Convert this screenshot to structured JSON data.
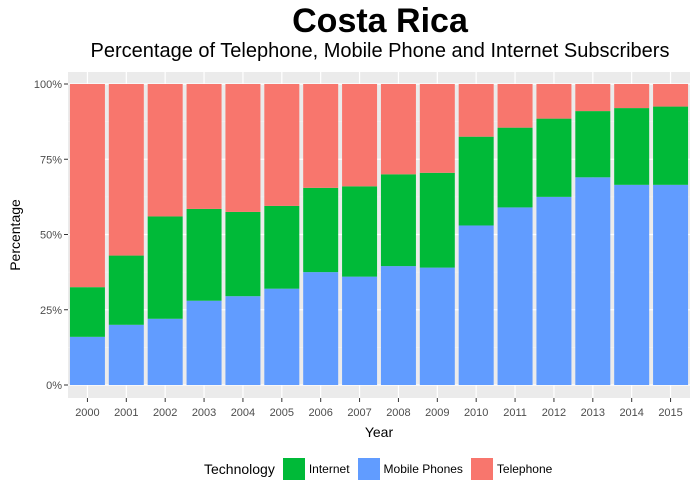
{
  "chart_data": {
    "type": "bar",
    "stacked": true,
    "title": "Costa Rica",
    "subtitle": "Percentage of Telephone, Mobile Phone and Internet Subscribers",
    "xlabel": "Year",
    "ylabel": "Percentage",
    "ylim": [
      0,
      100
    ],
    "y_ticks": [
      "0%",
      "25%",
      "50%",
      "75%",
      "100%"
    ],
    "categories": [
      "2000",
      "2001",
      "2002",
      "2003",
      "2004",
      "2005",
      "2006",
      "2007",
      "2008",
      "2009",
      "2010",
      "2011",
      "2012",
      "2013",
      "2014",
      "2015"
    ],
    "series": [
      {
        "name": "Mobile Phones",
        "color": "#619CFF",
        "values": [
          16,
          20,
          22,
          28,
          29.5,
          32,
          37.5,
          36,
          39.5,
          39,
          53,
          59,
          62.5,
          69,
          66.5,
          66.5
        ]
      },
      {
        "name": "Internet",
        "color": "#00BA38",
        "values": [
          16.5,
          23,
          34,
          30.5,
          28,
          27.5,
          28,
          30,
          30.5,
          31.5,
          29.5,
          26.5,
          26,
          22,
          25.5,
          26
        ]
      },
      {
        "name": "Telephone",
        "color": "#F8766D",
        "values": [
          67.5,
          57,
          44,
          41.5,
          42.5,
          40.5,
          34.5,
          34,
          30,
          29.5,
          17.5,
          14.5,
          11.5,
          9,
          8,
          7.5
        ]
      }
    ],
    "grid": true,
    "panel_background": "#EBEBEB",
    "legend": {
      "title": "Technology",
      "position": "bottom",
      "items": [
        {
          "label": "Internet",
          "color": "#00BA38"
        },
        {
          "label": "Mobile Phones",
          "color": "#619CFF"
        },
        {
          "label": "Telephone",
          "color": "#F8766D"
        }
      ]
    }
  }
}
